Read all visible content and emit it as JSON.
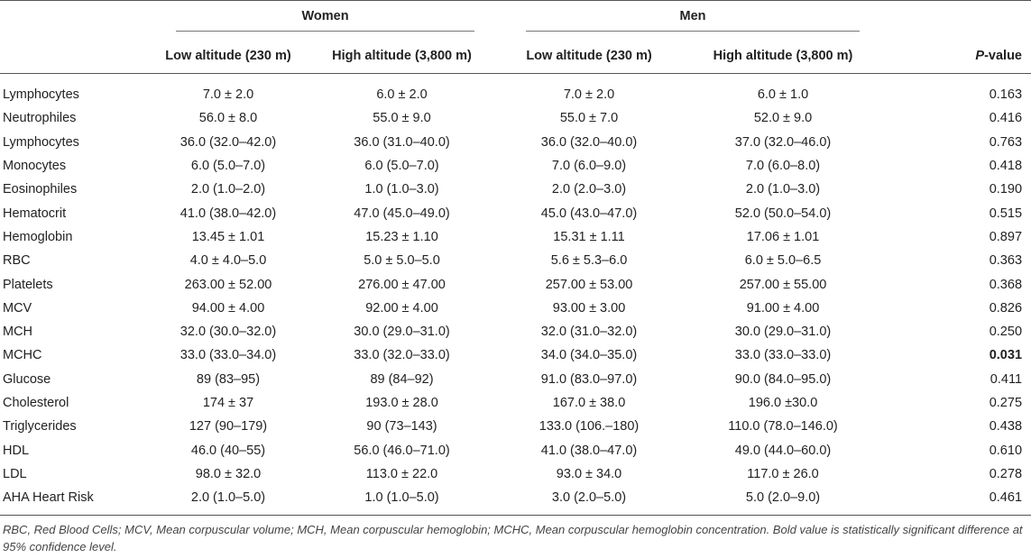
{
  "header": {
    "women": "Women",
    "men": "Men",
    "low_altitude": "Low altitude (230 m)",
    "high_altitude": "High altitude (3,800 m)",
    "pvalue_p": "P",
    "pvalue_suffix": "-value"
  },
  "rows": [
    {
      "label": "Lymphocytes",
      "w_low": "7.0 ± 2.0",
      "w_high": "6.0 ± 2.0",
      "m_low": "7.0 ± 2.0",
      "m_high": "6.0 ± 1.0",
      "p": "0.163"
    },
    {
      "label": "Neutrophiles",
      "w_low": "56.0 ± 8.0",
      "w_high": "55.0 ± 9.0",
      "m_low": "55.0 ± 7.0",
      "m_high": "52.0 ± 9.0",
      "p": "0.416"
    },
    {
      "label": "Lymphocytes",
      "w_low": "36.0 (32.0–42.0)",
      "w_high": "36.0 (31.0–40.0)",
      "m_low": "36.0 (32.0–40.0)",
      "m_high": "37.0 (32.0–46.0)",
      "p": "0.763"
    },
    {
      "label": "Monocytes",
      "w_low": "6.0 (5.0–7.0)",
      "w_high": "6.0 (5.0–7.0)",
      "m_low": "7.0 (6.0–9.0)",
      "m_high": "7.0 (6.0–8.0)",
      "p": "0.418"
    },
    {
      "label": "Eosinophiles",
      "w_low": "2.0 (1.0–2.0)",
      "w_high": "1.0 (1.0–3.0)",
      "m_low": "2.0 (2.0–3.0)",
      "m_high": "2.0 (1.0–3.0)",
      "p": "0.190"
    },
    {
      "label": "Hematocrit",
      "w_low": "41.0 (38.0–42.0)",
      "w_high": "47.0 (45.0–49.0)",
      "m_low": "45.0 (43.0–47.0)",
      "m_high": "52.0 (50.0–54.0)",
      "p": "0.515"
    },
    {
      "label": "Hemoglobin",
      "w_low": "13.45 ± 1.01",
      "w_high": "15.23 ± 1.10",
      "m_low": "15.31 ± 1.11",
      "m_high": "17.06 ± 1.01",
      "p": "0.897"
    },
    {
      "label": "RBC",
      "w_low": "4.0 ± 4.0–5.0",
      "w_high": "5.0 ± 5.0–5.0",
      "m_low": "5.6 ± 5.3–6.0",
      "m_high": "6.0 ± 5.0–6.5",
      "p": "0.363"
    },
    {
      "label": "Platelets",
      "w_low": "263.00 ± 52.00",
      "w_high": "276.00 ± 47.00",
      "m_low": "257.00 ± 53.00",
      "m_high": "257.00 ± 55.00",
      "p": "0.368"
    },
    {
      "label": "MCV",
      "w_low": "94.00 ± 4.00",
      "w_high": "92.00 ± 4.00",
      "m_low": "93.00 ± 3.00",
      "m_high": "91.00 ± 4.00",
      "p": "0.826"
    },
    {
      "label": "MCH",
      "w_low": "32.0 (30.0–32.0)",
      "w_high": "30.0 (29.0–31.0)",
      "m_low": "32.0 (31.0–32.0)",
      "m_high": "30.0 (29.0–31.0)",
      "p": "0.250"
    },
    {
      "label": "MCHC",
      "w_low": "33.0 (33.0–34.0)",
      "w_high": "33.0 (32.0–33.0)",
      "m_low": "34.0 (34.0–35.0)",
      "m_high": "33.0 (33.0–33.0)",
      "p": "0.031",
      "p_bold": true
    },
    {
      "label": "Glucose",
      "w_low": "89 (83–95)",
      "w_high": "89 (84–92)",
      "m_low": "91.0 (83.0–97.0)",
      "m_high": "90.0 (84.0–95.0)",
      "p": "0.411"
    },
    {
      "label": "Cholesterol",
      "w_low": "174 ± 37",
      "w_high": "193.0 ± 28.0",
      "m_low": "167.0 ± 38.0",
      "m_high": "196.0 ±30.0",
      "p": "0.275"
    },
    {
      "label": "Triglycerides",
      "w_low": "127 (90–179)",
      "w_high": "90 (73–143)",
      "m_low": "133.0 (106.–180)",
      "m_high": "110.0 (78.0–146.0)",
      "p": "0.438"
    },
    {
      "label": "HDL",
      "w_low": "46.0 (40–55)",
      "w_high": "56.0 (46.0–71.0)",
      "m_low": "41.0 (38.0–47.0)",
      "m_high": "49.0 (44.0–60.0)",
      "p": "0.610"
    },
    {
      "label": "LDL",
      "w_low": "98.0 ± 32.0",
      "w_high": "113.0 ± 22.0",
      "m_low": "93.0 ± 34.0",
      "m_high": "117.0 ± 26.0",
      "p": "0.278"
    },
    {
      "label": "AHA Heart Risk",
      "w_low": "2.0 (1.0–5.0)",
      "w_high": "1.0 (1.0–5.0)",
      "m_low": "3.0 (2.0–5.0)",
      "m_high": "5.0 (2.0–9.0)",
      "p": "0.461"
    }
  ],
  "footnote": "RBC, Red Blood Cells; MCV, Mean corpuscular volume; MCH, Mean corpuscular hemoglobin; MCHC, Mean corpuscular hemoglobin concentration. Bold value is statistically significant difference at 95% confidence level."
}
